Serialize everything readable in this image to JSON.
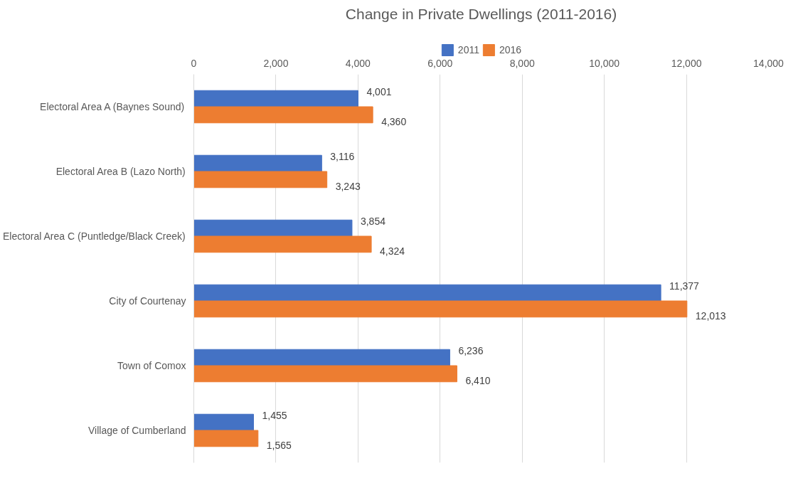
{
  "chart_data": {
    "type": "bar",
    "orientation": "horizontal",
    "title": "Change in Private Dwellings (2011-2016)",
    "categories": [
      "Electoral Area A (Baynes Sound)",
      "Electoral Area B (Lazo North)",
      "Electoral Area C (Puntledge/Black Creek)",
      "City of Courtenay",
      "Town of Comox",
      "Village of Cumberland"
    ],
    "series": [
      {
        "name": "2011",
        "color": "#4472c4",
        "values": [
          4001,
          3116,
          3854,
          11377,
          6236,
          1455
        ],
        "value_labels": [
          "4,001",
          "3,116",
          "3,854",
          "11,377",
          "6,236",
          "1,455"
        ]
      },
      {
        "name": "2016",
        "color": "#ed7d31",
        "values": [
          4360,
          3243,
          4324,
          12013,
          6410,
          1565
        ],
        "value_labels": [
          "4,360",
          "3,243",
          "4,324",
          "12,013",
          "6,410",
          "1,565"
        ]
      }
    ],
    "xlim": [
      0,
      14000
    ],
    "xticks": [
      {
        "value": 0,
        "label": "0"
      },
      {
        "value": 2000,
        "label": "2,000"
      },
      {
        "value": 4000,
        "label": "4,000"
      },
      {
        "value": 6000,
        "label": "6,000"
      },
      {
        "value": 8000,
        "label": "8,000"
      },
      {
        "value": 10000,
        "label": "10,000"
      },
      {
        "value": 12000,
        "label": "12,000"
      },
      {
        "value": 14000,
        "label": "14,000"
      }
    ],
    "grid": "x",
    "legend": "top",
    "data_labels": true
  }
}
